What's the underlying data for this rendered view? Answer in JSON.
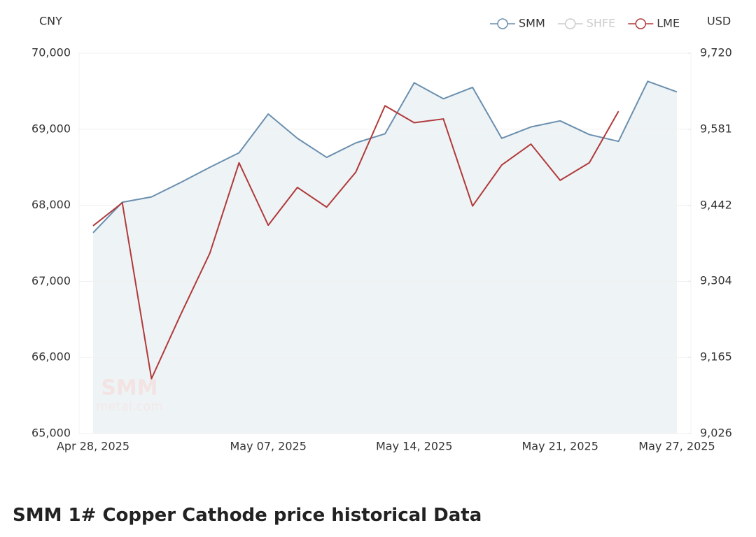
{
  "chart_data": {
    "type": "line",
    "y_axis_label": "CNY",
    "y2_axis_label": "USD",
    "watermark": [
      "SMM",
      "metal.com"
    ],
    "categories": [
      "Apr 28, 2025",
      null,
      null,
      null,
      null,
      null,
      "May 07, 2025",
      null,
      null,
      null,
      null,
      "May 14, 2025",
      null,
      null,
      null,
      null,
      "May 21, 2025",
      null,
      null,
      null,
      "May 27, 2025"
    ],
    "series": [
      {
        "name": "SMM",
        "color": "#6a8fae",
        "fill": "#eef3f6",
        "values": [
          67640,
          68040,
          68110,
          68300,
          68500,
          68690,
          69200,
          68880,
          68630,
          68820,
          68940,
          69610,
          69400,
          69550,
          68880,
          69030,
          69110,
          68930,
          68840,
          69630,
          69490
        ]
      },
      {
        "name": "SHFE",
        "color": "#cccccc",
        "hidden": true,
        "values": [
          null,
          null,
          null,
          null,
          null,
          null,
          null,
          null,
          null,
          null,
          null,
          null,
          null,
          null,
          null,
          null,
          null,
          null,
          null,
          null,
          null
        ]
      },
      {
        "name": "LME",
        "color": "#b03a3a",
        "axis": "y2",
        "values": [
          9405,
          9447,
          9126,
          9243,
          9355,
          9520,
          9406,
          9475,
          9439,
          9503,
          9624,
          9593,
          9600,
          9441,
          9516,
          9554,
          9488,
          9520,
          9614,
          null,
          null
        ]
      }
    ],
    "ylim": [
      65000,
      70000
    ],
    "yticks": [
      {
        "value": 65000,
        "label": "65,000"
      },
      {
        "value": 66000,
        "label": "66,000"
      },
      {
        "value": 67000,
        "label": "67,000"
      },
      {
        "value": 68000,
        "label": "68,000"
      },
      {
        "value": 69000,
        "label": "69,000"
      },
      {
        "value": 70000,
        "label": "70,000"
      }
    ],
    "y2lim": [
      9026,
      9720
    ],
    "y2ticks": [
      {
        "value": 9026,
        "label": "9,026"
      },
      {
        "value": 9165,
        "label": "9,165"
      },
      {
        "value": 9304,
        "label": "9,304"
      },
      {
        "value": 9442,
        "label": "9,442"
      },
      {
        "value": 9581,
        "label": "9,581"
      },
      {
        "value": 9720,
        "label": "9,720"
      }
    ],
    "grid": true,
    "legend": "top-right",
    "title": "SMM 1# Copper Cathode price historical Data"
  }
}
